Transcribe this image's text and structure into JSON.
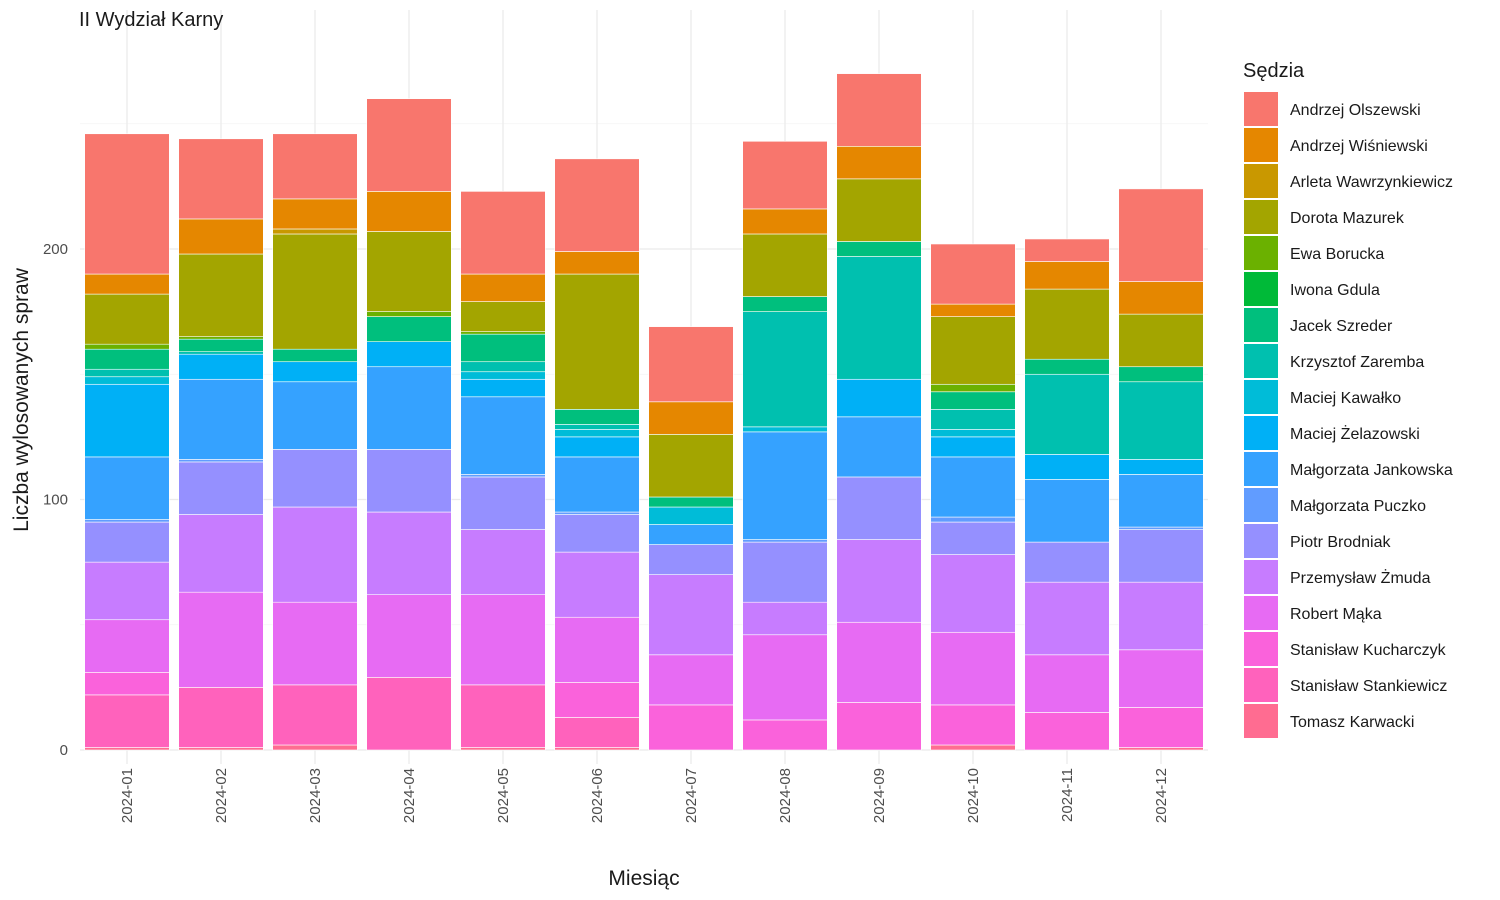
{
  "chart_data": {
    "type": "bar",
    "stacked": true,
    "title": "II Wydział Karny",
    "xlabel": "Miesiąc",
    "ylabel": "Liczba wylosowanych spraw",
    "ylim": [
      0,
      280
    ],
    "y_ticks": [
      0,
      100,
      200
    ],
    "grid": true,
    "legend_title": "Sędzia",
    "legend_position": "right",
    "categories": [
      "2024-01",
      "2024-02",
      "2024-03",
      "2024-04",
      "2024-05",
      "2024-06",
      "2024-07",
      "2024-08",
      "2024-09",
      "2024-10",
      "2024-11",
      "2024-12"
    ],
    "series": [
      {
        "name": "Andrzej Olszewski",
        "color": "#F8766D",
        "values": [
          56,
          32,
          26,
          37,
          33,
          37,
          30,
          27,
          29,
          24,
          9,
          37
        ]
      },
      {
        "name": "Andrzej Wiśniewski",
        "color": "#E58700",
        "values": [
          8,
          14,
          12,
          16,
          11,
          9,
          13,
          10,
          13,
          5,
          11,
          13
        ]
      },
      {
        "name": "Arleta Wawrzynkiewicz",
        "color": "#C99800",
        "values": [
          0,
          0,
          2,
          0,
          0,
          0,
          0,
          0,
          0,
          0,
          0,
          0
        ]
      },
      {
        "name": "Dorota Mazurek",
        "color": "#A3A500",
        "values": [
          20,
          33,
          46,
          32,
          12,
          54,
          25,
          25,
          25,
          27,
          28,
          21
        ]
      },
      {
        "name": "Ewa Borucka",
        "color": "#6BB100",
        "values": [
          2,
          1,
          0,
          2,
          1,
          0,
          0,
          0,
          0,
          3,
          0,
          0
        ]
      },
      {
        "name": "Iwona Gdula",
        "color": "#00BA38",
        "values": [
          0,
          0,
          0,
          0,
          0,
          0,
          0,
          0,
          0,
          0,
          0,
          0
        ]
      },
      {
        "name": "Jacek Szreder",
        "color": "#00BF7D",
        "values": [
          8,
          5,
          5,
          10,
          11,
          6,
          4,
          6,
          6,
          7,
          6,
          6
        ]
      },
      {
        "name": "Krzysztof Zaremba",
        "color": "#00C0AF",
        "values": [
          3,
          1,
          0,
          0,
          4,
          2,
          0,
          46,
          49,
          8,
          32,
          31
        ]
      },
      {
        "name": "Maciej Kawałko",
        "color": "#00BCD8",
        "values": [
          3,
          0,
          0,
          0,
          3,
          3,
          7,
          2,
          0,
          3,
          0,
          0
        ]
      },
      {
        "name": "Maciej Żelazowski",
        "color": "#00B0F6",
        "values": [
          29,
          10,
          8,
          10,
          7,
          8,
          0,
          0,
          15,
          8,
          10,
          6
        ]
      },
      {
        "name": "Małgorzata Jankowska",
        "color": "#35A2FF",
        "values": [
          25,
          32,
          27,
          33,
          31,
          22,
          8,
          43,
          24,
          24,
          25,
          21
        ]
      },
      {
        "name": "Małgorzata Puczko",
        "color": "#619CFF",
        "values": [
          1,
          1,
          0,
          0,
          1,
          1,
          0,
          1,
          0,
          2,
          0,
          1
        ]
      },
      {
        "name": "Piotr Brodniak",
        "color": "#9590FF",
        "values": [
          16,
          21,
          23,
          25,
          21,
          15,
          12,
          24,
          25,
          13,
          16,
          21
        ]
      },
      {
        "name": "Przemysław Żmuda",
        "color": "#C77CFF",
        "values": [
          23,
          31,
          38,
          33,
          26,
          26,
          32,
          13,
          33,
          31,
          29,
          27
        ]
      },
      {
        "name": "Robert Mąka",
        "color": "#E76BF3",
        "values": [
          21,
          38,
          33,
          33,
          36,
          26,
          20,
          34,
          32,
          29,
          23,
          23
        ]
      },
      {
        "name": "Stanisław Kucharczyk",
        "color": "#FA62DB",
        "values": [
          9,
          0,
          0,
          0,
          0,
          14,
          18,
          12,
          19,
          16,
          15,
          16
        ]
      },
      {
        "name": "Stanisław Stankiewicz",
        "color": "#FF62BC",
        "values": [
          21,
          24,
          24,
          29,
          25,
          12,
          0,
          0,
          0,
          0,
          0,
          0
        ]
      },
      {
        "name": "Tomasz Karwacki",
        "color": "#FF6C91",
        "values": [
          1,
          1,
          2,
          0,
          1,
          1,
          0,
          0,
          0,
          2,
          0,
          1
        ]
      }
    ]
  }
}
